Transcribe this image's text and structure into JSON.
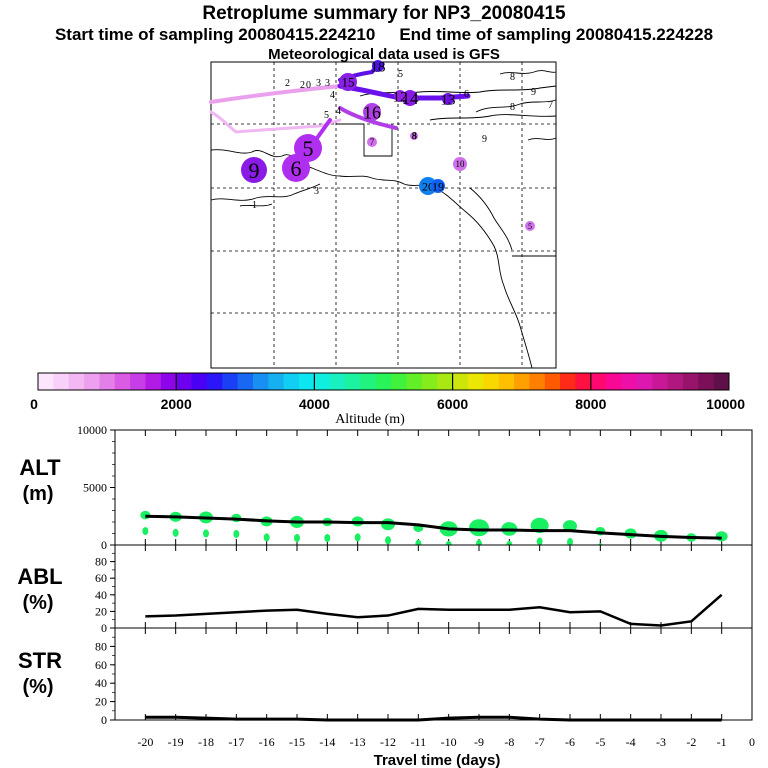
{
  "header": {
    "title": "Retroplume summary for NP3_20080415",
    "start_text": "Start time of sampling 20080415.224210",
    "end_text": "End time of sampling 20080415.224228",
    "met_text": "Meteorological data used is GFS"
  },
  "colorbar": {
    "label": "Altitude (m)",
    "ticks": [
      "0",
      "2000",
      "4000",
      "6000",
      "8000",
      "10000"
    ],
    "colors": [
      "#fde6fd",
      "#f9d0f9",
      "#f3b8f3",
      "#eda0ef",
      "#e47ee9",
      "#da5ce5",
      "#c83ee6",
      "#b21ae6",
      "#8f05eb",
      "#6d00ef",
      "#4a00f4",
      "#2a16f6",
      "#1a40f5",
      "#1868f3",
      "#1890f2",
      "#16b0f0",
      "#10cff2",
      "#0ce6f0",
      "#10eee0",
      "#18f0c0",
      "#1cf2a0",
      "#20f47e",
      "#28f45a",
      "#40f23c",
      "#62ef28",
      "#86ec1c",
      "#aae814",
      "#cce60c",
      "#ece604",
      "#f8d800",
      "#ffc000",
      "#ffa000",
      "#ff8000",
      "#ff5a00",
      "#ff2a18",
      "#ff1040",
      "#ff0870",
      "#f80895",
      "#ec10a8",
      "#dc18b0",
      "#c81898",
      "#b01880",
      "#98146a",
      "#7c1058",
      "#601048"
    ]
  },
  "map": {
    "markers": [
      {
        "label": "18",
        "color": "#5010e8"
      },
      {
        "label": "13",
        "color": "#7010e0"
      },
      {
        "label": "14",
        "color": "#8a18e6"
      },
      {
        "label": "12",
        "color": "#9420e6"
      },
      {
        "label": "16",
        "color": "#b040e6"
      },
      {
        "label": "5",
        "color": "#b02ef0"
      },
      {
        "label": "6",
        "color": "#b02ef0"
      },
      {
        "label": "9",
        "color": "#8a1ae6"
      },
      {
        "label": "7",
        "color": "#d070ea"
      },
      {
        "label": "10",
        "color": "#d070ea"
      },
      {
        "label": "8",
        "color": "#d070ea"
      },
      {
        "label": "20",
        "color": "#1080f0"
      },
      {
        "label": "19",
        "color": "#1060f2"
      },
      {
        "label": "15",
        "color": "#8a20e6"
      },
      {
        "label": "5",
        "color": "#d070ea"
      }
    ]
  },
  "chart_data": [
    {
      "type": "line",
      "title": "ALT",
      "ylabel": "ALT (m)",
      "xlabel": "Travel time (days)",
      "ylim": [
        0,
        10000
      ],
      "yticks": [
        "10000",
        "5000",
        "0"
      ],
      "x": [
        -20,
        -19,
        -18,
        -17,
        -16,
        -15,
        -14,
        -13,
        -12,
        -11,
        -10,
        -9,
        -8,
        -7,
        -6,
        -5,
        -4,
        -3,
        -2,
        -1
      ],
      "series": [
        {
          "name": "mean altitude",
          "values": [
            2500,
            2450,
            2350,
            2250,
            2100,
            2000,
            2000,
            1950,
            1950,
            1750,
            1400,
            1300,
            1300,
            1250,
            1250,
            1050,
            900,
            750,
            650,
            600
          ]
        },
        {
          "name": "plume altitude",
          "values": [
            2600,
            2450,
            2400,
            2350,
            2050,
            2000,
            2000,
            2050,
            1800,
            1500,
            1400,
            1500,
            1400,
            1700,
            1650,
            1200,
            1000,
            800,
            650,
            750
          ]
        }
      ]
    },
    {
      "type": "line",
      "title": "ABL",
      "ylabel": "ABL (%)",
      "ylim": [
        0,
        100
      ],
      "yticks": [
        "80",
        "60",
        "40",
        "20",
        "0"
      ],
      "x": [
        -20,
        -19,
        -18,
        -17,
        -16,
        -15,
        -14,
        -13,
        -12,
        -11,
        -10,
        -9,
        -8,
        -7,
        -6,
        -5,
        -4,
        -3,
        -2,
        -1
      ],
      "values": [
        14,
        15,
        17,
        19,
        21,
        22,
        17,
        13,
        15,
        23,
        22,
        22,
        22,
        25,
        19,
        20,
        5,
        3,
        8,
        40
      ]
    },
    {
      "type": "line",
      "title": "STR",
      "ylabel": "STR (%)",
      "xlabel": "Travel time (days)",
      "ylim": [
        0,
        100
      ],
      "yticks": [
        "80",
        "60",
        "40",
        "20",
        "0"
      ],
      "x": [
        -20,
        -19,
        -18,
        -17,
        -16,
        -15,
        -14,
        -13,
        -12,
        -11,
        -10,
        -9,
        -8,
        -7,
        -6,
        -5,
        -4,
        -3,
        -2,
        -1
      ],
      "values": [
        3,
        3,
        2,
        1,
        1,
        1,
        0,
        0,
        0,
        0,
        2,
        3,
        3,
        1,
        0,
        0,
        0,
        0,
        0,
        0
      ],
      "xticks": [
        "-20",
        "-19",
        "-18",
        "-17",
        "-16",
        "-15",
        "-14",
        "-13",
        "-12",
        "-11",
        "-10",
        "-9",
        "-8",
        "-7",
        "-6",
        "-5",
        "-4",
        "-3",
        "-2",
        "-1",
        "0"
      ]
    }
  ]
}
